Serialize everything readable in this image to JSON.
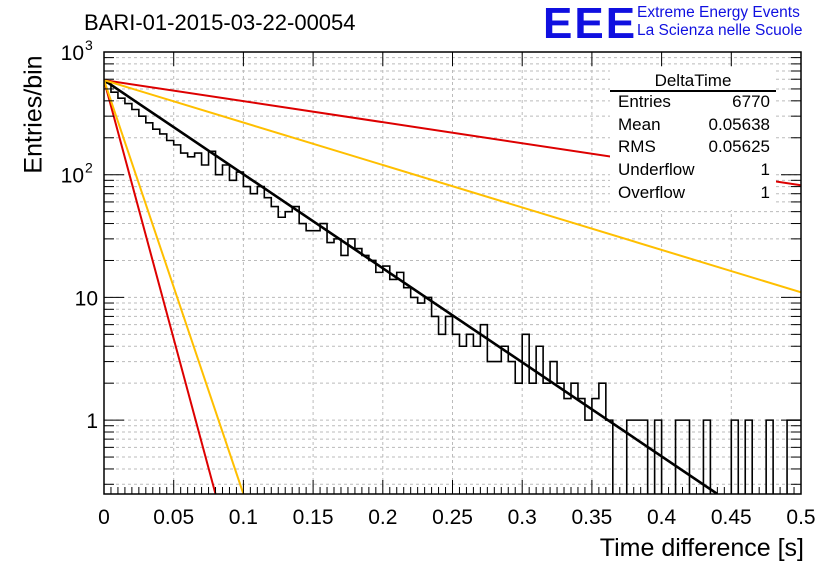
{
  "header": {
    "run_title": "BARI-01-2015-03-22-00054",
    "logo_text": "EEE",
    "logo_line1": "Extreme Energy Events",
    "logo_line2": "La Scienza nelle Scuole",
    "brand_color": "#1010e0"
  },
  "stats_box": {
    "title": "DeltaTime",
    "rows": [
      {
        "key": "Entries",
        "value": "6770"
      },
      {
        "key": "Mean",
        "value": "0.05638"
      },
      {
        "key": "RMS",
        "value": "0.05625"
      },
      {
        "key": "Underflow",
        "value": "1"
      },
      {
        "key": "Overflow",
        "value": "1"
      }
    ]
  },
  "chart_data": {
    "type": "line",
    "title": "BARI-01-2015-03-22-00054",
    "xlabel": "Time difference [s]",
    "ylabel": "Entries/bin",
    "xlim": [
      0,
      0.5
    ],
    "ylim": [
      0.25,
      1000
    ],
    "y_scale": "log",
    "grid": true,
    "x_ticks": [
      "0",
      "0.05",
      "0.1",
      "0.15",
      "0.2",
      "0.25",
      "0.3",
      "0.35",
      "0.4",
      "0.45",
      "0.5"
    ],
    "y_ticks": [
      {
        "value": 1,
        "label": "1"
      },
      {
        "value": 10,
        "label": "10"
      },
      {
        "value": 100,
        "label": "10",
        "exp": "2"
      },
      {
        "value": 1000,
        "label": "10",
        "exp": "3"
      }
    ],
    "histogram": {
      "bin_width": 0.005,
      "color": "#000000",
      "values": [
        560,
        470,
        420,
        380,
        340,
        300,
        265,
        235,
        215,
        190,
        175,
        150,
        140,
        150,
        120,
        155,
        100,
        120,
        90,
        105,
        80,
        70,
        80,
        65,
        55,
        45,
        50,
        55,
        40,
        35,
        35,
        40,
        28,
        30,
        22,
        30,
        25,
        22,
        20,
        16,
        18,
        14,
        16,
        12,
        10,
        9,
        10,
        7,
        5,
        7,
        5,
        4,
        5,
        4,
        6,
        3,
        3,
        4,
        3,
        2,
        5,
        2,
        4,
        2,
        3,
        2,
        1.5,
        2,
        1.5,
        1,
        1.5,
        2,
        1,
        0,
        0,
        1,
        1,
        1,
        0,
        1,
        0,
        0,
        1,
        1,
        0,
        0,
        1,
        0,
        0,
        0,
        1,
        0,
        1,
        0,
        0,
        1,
        0,
        0,
        1,
        1
      ]
    },
    "series": [
      {
        "color": "#000000",
        "points": [
          [
            0,
            590
          ],
          [
            0.44,
            0.25
          ]
        ]
      },
      {
        "color": "#dd0000",
        "points": [
          [
            0,
            590
          ],
          [
            0.5,
            82
          ]
        ]
      },
      {
        "color": "#ffbf00",
        "points": [
          [
            0,
            590
          ],
          [
            0.5,
            11
          ]
        ]
      },
      {
        "color": "#dd0000",
        "points": [
          [
            0,
            590
          ],
          [
            0.08,
            0.25
          ]
        ]
      },
      {
        "color": "#ffbf00",
        "points": [
          [
            0,
            590
          ],
          [
            0.1,
            0.25
          ]
        ]
      }
    ]
  }
}
